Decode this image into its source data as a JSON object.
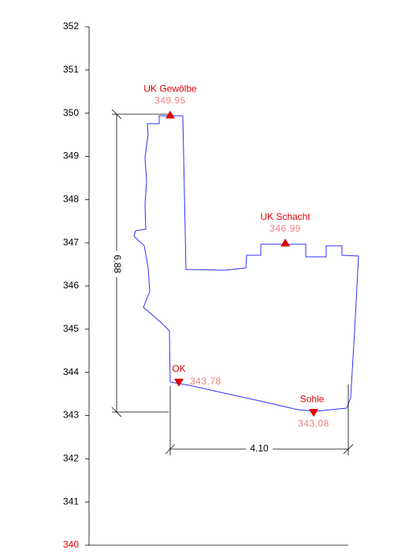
{
  "axis": {
    "ticks": [
      340,
      341,
      342,
      343,
      344,
      345,
      346,
      347,
      348,
      349,
      350,
      351,
      352
    ]
  },
  "markers": [
    {
      "label": "UK Gewölbe",
      "value": 349.95,
      "direction": "up"
    },
    {
      "label": "UK Schacht",
      "value": 346.99,
      "direction": "up"
    },
    {
      "label": "OK",
      "value": 343.78,
      "direction": "down"
    },
    {
      "label": "Sohle",
      "value": 343.08,
      "direction": "down"
    }
  ],
  "dimensions": {
    "height": "6.88",
    "width": "4.10"
  }
}
